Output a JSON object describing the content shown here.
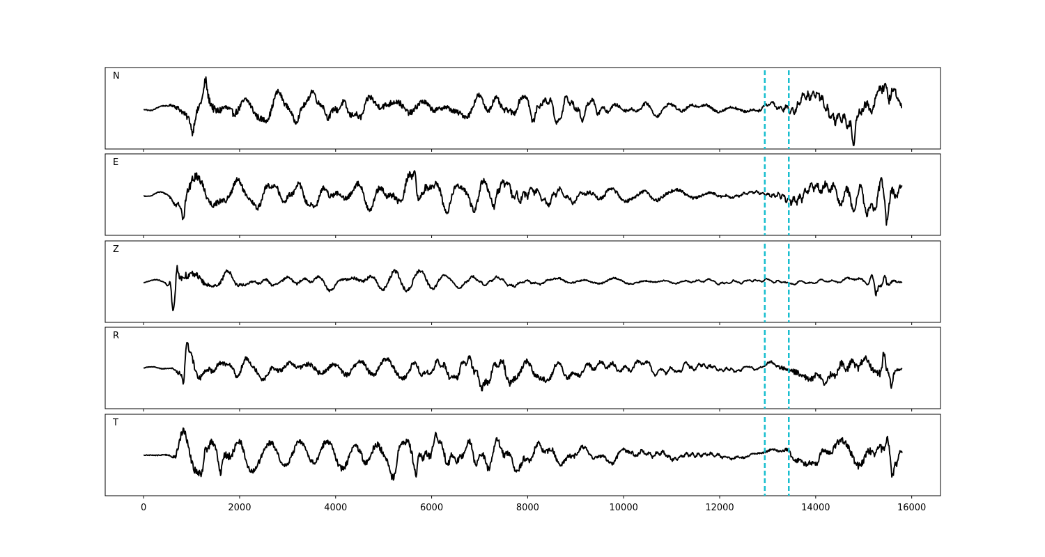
{
  "chart_data": {
    "type": "line",
    "xlim": [
      -800,
      16600
    ],
    "x_ticks": [
      0,
      2000,
      4000,
      6000,
      8000,
      10000,
      12000,
      14000,
      16000
    ],
    "x_tick_labels": [
      "0",
      "2000",
      "4000",
      "6000",
      "8000",
      "10000",
      "12000",
      "14000",
      "16000"
    ],
    "sample_range": [
      0,
      15800
    ],
    "grid": false,
    "marker_lines": {
      "x": [
        12940,
        13440
      ],
      "color": "#17becf",
      "style": "dashed"
    },
    "trace_color": "#000000",
    "panels": [
      {
        "label": "N",
        "envelope": [
          [
            0,
            0.07
          ],
          [
            500,
            0.07
          ],
          [
            700,
            0.35
          ],
          [
            1300,
            0.62
          ],
          [
            1800,
            0.55
          ],
          [
            3000,
            0.38
          ],
          [
            5000,
            0.48
          ],
          [
            6000,
            0.38
          ],
          [
            7500,
            0.4
          ],
          [
            9000,
            0.35
          ],
          [
            10000,
            0.22
          ],
          [
            12000,
            0.2
          ],
          [
            12940,
            0.16
          ],
          [
            13500,
            0.35
          ],
          [
            14500,
            0.55
          ],
          [
            15000,
            0.6
          ],
          [
            15600,
            0.72
          ],
          [
            15800,
            0.25
          ]
        ],
        "events": [
          [
            1290,
            0.6
          ],
          [
            15460,
            0.72
          ],
          [
            14780,
            -0.55
          ],
          [
            1020,
            -0.5
          ]
        ]
      },
      {
        "label": "E",
        "envelope": [
          [
            0,
            0.06
          ],
          [
            500,
            0.08
          ],
          [
            700,
            0.45
          ],
          [
            1000,
            0.65
          ],
          [
            1600,
            0.45
          ],
          [
            3000,
            0.35
          ],
          [
            5000,
            0.42
          ],
          [
            5700,
            0.6
          ],
          [
            6500,
            0.35
          ],
          [
            7500,
            0.5
          ],
          [
            9000,
            0.3
          ],
          [
            12000,
            0.18
          ],
          [
            12940,
            0.12
          ],
          [
            13500,
            0.38
          ],
          [
            14500,
            0.55
          ],
          [
            15500,
            0.62
          ],
          [
            15800,
            0.3
          ]
        ],
        "events": [
          [
            830,
            -0.7
          ],
          [
            5650,
            0.68
          ],
          [
            7360,
            0.55
          ],
          [
            15480,
            -0.55
          ]
        ]
      },
      {
        "label": "Z",
        "envelope": [
          [
            0,
            0.05
          ],
          [
            450,
            0.06
          ],
          [
            600,
            0.45
          ],
          [
            800,
            0.55
          ],
          [
            1400,
            0.3
          ],
          [
            2200,
            0.16
          ],
          [
            4700,
            0.2
          ],
          [
            5300,
            0.3
          ],
          [
            6500,
            0.14
          ],
          [
            9000,
            0.11
          ],
          [
            13000,
            0.07
          ],
          [
            14500,
            0.09
          ],
          [
            15000,
            0.12
          ],
          [
            15200,
            0.3
          ],
          [
            15500,
            0.32
          ],
          [
            15800,
            0.06
          ]
        ],
        "events": [
          [
            620,
            -0.65
          ],
          [
            700,
            0.72
          ],
          [
            550,
            0.45
          ],
          [
            15250,
            -0.48
          ],
          [
            15440,
            0.42
          ]
        ]
      },
      {
        "label": "R",
        "envelope": [
          [
            0,
            0.04
          ],
          [
            600,
            0.07
          ],
          [
            800,
            0.42
          ],
          [
            1200,
            0.38
          ],
          [
            2500,
            0.32
          ],
          [
            4000,
            0.34
          ],
          [
            5500,
            0.34
          ],
          [
            7400,
            0.5
          ],
          [
            9000,
            0.3
          ],
          [
            11000,
            0.2
          ],
          [
            12940,
            0.1
          ],
          [
            13500,
            0.38
          ],
          [
            14500,
            0.5
          ],
          [
            15400,
            0.6
          ],
          [
            15800,
            0.15
          ]
        ],
        "events": [
          [
            830,
            -0.6
          ],
          [
            15420,
            0.74
          ],
          [
            15580,
            -0.6
          ],
          [
            900,
            0.5
          ]
        ]
      },
      {
        "label": "T",
        "envelope": [
          [
            0,
            0.05
          ],
          [
            550,
            0.08
          ],
          [
            700,
            0.5
          ],
          [
            1300,
            0.6
          ],
          [
            1700,
            0.55
          ],
          [
            3000,
            0.35
          ],
          [
            5700,
            0.55
          ],
          [
            6500,
            0.45
          ],
          [
            7500,
            0.5
          ],
          [
            9000,
            0.3
          ],
          [
            11500,
            0.18
          ],
          [
            12940,
            0.12
          ],
          [
            13500,
            0.3
          ],
          [
            14500,
            0.45
          ],
          [
            15600,
            0.62
          ],
          [
            15800,
            0.2
          ]
        ],
        "events": [
          [
            1280,
            0.68
          ],
          [
            5680,
            -0.7
          ],
          [
            1600,
            -0.6
          ],
          [
            15600,
            -0.6
          ]
        ]
      }
    ]
  }
}
